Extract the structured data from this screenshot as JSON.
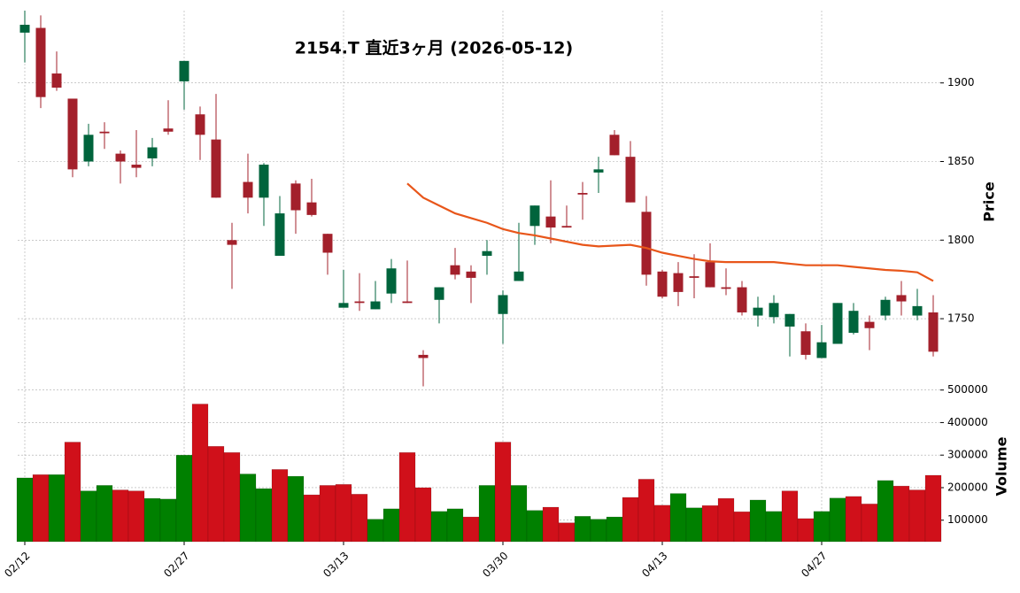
{
  "chart_data": {
    "type": "candlestick",
    "title": "2154.T 直近3ヶ月 (2026-05-12)",
    "ylabel": "Price",
    "categories": [
      "02/12",
      null,
      null,
      null,
      null,
      null,
      null,
      null,
      null,
      null,
      "02/27",
      null,
      null,
      null,
      null,
      null,
      null,
      null,
      null,
      null,
      "03/13",
      null,
      null,
      null,
      null,
      null,
      null,
      null,
      null,
      null,
      "03/30",
      null,
      null,
      null,
      null,
      null,
      null,
      null,
      null,
      null,
      "04/13",
      null,
      null,
      null,
      null,
      null,
      null,
      null,
      null,
      null,
      "04/27",
      null,
      null,
      null,
      null,
      null,
      null,
      null
    ],
    "open": [
      1932,
      1935,
      1906,
      1890,
      1850,
      1869,
      1855,
      1848,
      1852,
      1871,
      1901,
      1880,
      1864,
      1800,
      1837,
      1827,
      1790,
      1836,
      1824,
      1804,
      1757,
      1761,
      1756,
      1766,
      1761,
      1727,
      1762,
      1784,
      1780,
      1790,
      1753,
      1774,
      1809,
      1815,
      1809,
      1830,
      1843,
      1867,
      1853,
      1818,
      1780,
      1779,
      1777,
      1786,
      1770,
      1770,
      1752,
      1751,
      1745,
      1742,
      1725,
      1734,
      1741,
      1748,
      1752,
      1765,
      1752,
      1754
    ],
    "high": [
      1946,
      1943,
      1920,
      1890,
      1874,
      1875,
      1857,
      1870,
      1865,
      1889,
      1914,
      1885,
      1893,
      1811,
      1855,
      1849,
      1828,
      1838,
      1839,
      1804,
      1781,
      1779,
      1774,
      1788,
      1787,
      1730,
      1770,
      1795,
      1784,
      1800,
      1768,
      1811,
      1822,
      1838,
      1822,
      1837,
      1853,
      1870,
      1863,
      1828,
      1781,
      1786,
      1791,
      1798,
      1782,
      1774,
      1764,
      1765,
      1753,
      1747,
      1746,
      1760,
      1760,
      1752,
      1764,
      1774,
      1769,
      1765
    ],
    "low": [
      1913,
      1884,
      1895,
      1840,
      1847,
      1858,
      1836,
      1840,
      1847,
      1867,
      1883,
      1851,
      1827,
      1769,
      1817,
      1809,
      1790,
      1804,
      1815,
      1778,
      1757,
      1755,
      1756,
      1760,
      1760,
      1707,
      1747,
      1775,
      1760,
      1778,
      1734,
      1774,
      1797,
      1798,
      1808,
      1813,
      1830,
      1854,
      1824,
      1771,
      1763,
      1758,
      1763,
      1770,
      1765,
      1752,
      1745,
      1747,
      1726,
      1724,
      1725,
      1734,
      1740,
      1730,
      1749,
      1752,
      1749,
      1726
    ],
    "close": [
      1937,
      1891,
      1897,
      1845,
      1867,
      1868,
      1850,
      1846,
      1859,
      1869,
      1914,
      1867,
      1827,
      1797,
      1827,
      1848,
      1817,
      1819,
      1816,
      1792,
      1760,
      1760,
      1761,
      1782,
      1760,
      1725,
      1770,
      1778,
      1776,
      1793,
      1765,
      1780,
      1822,
      1808,
      1808,
      1829,
      1845,
      1854,
      1824,
      1778,
      1764,
      1767,
      1776,
      1770,
      1769,
      1754,
      1757,
      1760,
      1753,
      1727,
      1735,
      1760,
      1755,
      1744,
      1762,
      1761,
      1758,
      1729
    ],
    "up_color": "#00643c",
    "down_color": "#a3202b",
    "ylim": [
      1705,
      1946
    ],
    "yticks": [
      1750,
      1800,
      1850,
      1900
    ],
    "grid": true,
    "ma": {
      "color": "#e8561a",
      "values": [
        null,
        null,
        null,
        null,
        null,
        null,
        null,
        null,
        null,
        null,
        null,
        null,
        null,
        null,
        null,
        null,
        null,
        null,
        null,
        null,
        null,
        null,
        null,
        null,
        1836,
        1827,
        1822,
        1817,
        1814,
        1811,
        1807,
        1804.5,
        1803,
        1801,
        1799,
        1797,
        1796,
        1796.5,
        1797,
        1795,
        1792,
        1790,
        1788,
        1786.5,
        1786,
        1786,
        1786,
        1786,
        1785,
        1784,
        1784,
        1784,
        1783,
        1782,
        1781,
        1780.5,
        1779.5,
        1774
      ]
    },
    "volume": {
      "ylabel": "Volume",
      "ylim": [
        34000,
        510000
      ],
      "yticks": [
        100000,
        200000,
        300000,
        400000,
        500000
      ],
      "values": [
        230000,
        240000,
        240000,
        340000,
        190000,
        207000,
        193000,
        190000,
        167000,
        165000,
        300000,
        457000,
        327000,
        308000,
        242000,
        197000,
        256000,
        235000,
        178000,
        207000,
        210000,
        180000,
        103000,
        135000,
        308000,
        200000,
        127000,
        135000,
        110000,
        207000,
        340000,
        207000,
        130000,
        140000,
        92000,
        112000,
        103000,
        110000,
        170000,
        226000,
        146000,
        182000,
        138000,
        145000,
        167000,
        126000,
        162000,
        127000,
        190000,
        105000,
        127000,
        168000,
        173000,
        150000,
        222000,
        205000,
        193000,
        238000
      ],
      "colors": [
        "#008000",
        "#d0101a",
        "#008000",
        "#d0101a",
        "#008000",
        "#008000",
        "#d0101a",
        "#d0101a",
        "#008000",
        "#008000",
        "#008000",
        "#d0101a",
        "#d0101a",
        "#d0101a",
        "#008000",
        "#008000",
        "#d0101a",
        "#008000",
        "#d0101a",
        "#d0101a",
        "#d0101a",
        "#d0101a",
        "#008000",
        "#008000",
        "#d0101a",
        "#d0101a",
        "#008000",
        "#008000",
        "#d0101a",
        "#008000",
        "#d0101a",
        "#008000",
        "#008000",
        "#d0101a",
        "#d0101a",
        "#008000",
        "#008000",
        "#008000",
        "#d0101a",
        "#d0101a",
        "#d0101a",
        "#008000",
        "#008000",
        "#d0101a",
        "#d0101a",
        "#d0101a",
        "#008000",
        "#008000",
        "#d0101a",
        "#d0101a",
        "#008000",
        "#008000",
        "#d0101a",
        "#d0101a",
        "#008000",
        "#d0101a",
        "#d0101a",
        "#d0101a"
      ]
    }
  }
}
